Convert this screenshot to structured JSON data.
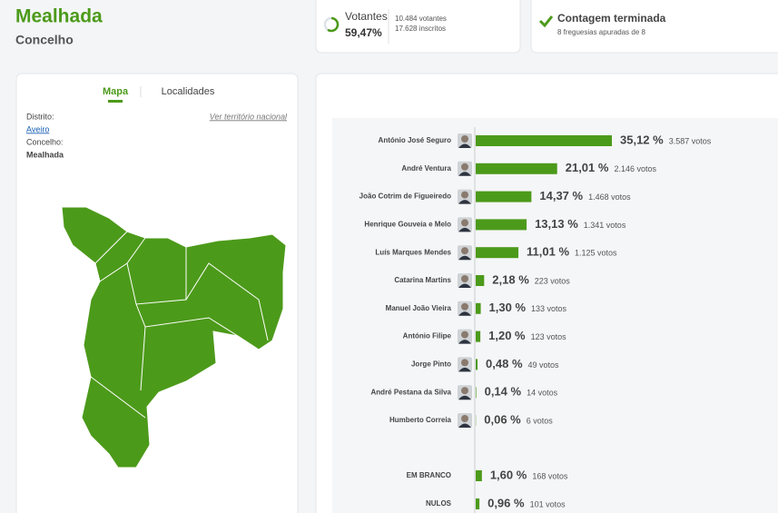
{
  "header": {
    "title": "Mealhada",
    "subtitle": "Concelho"
  },
  "turnout": {
    "label": "Votantes",
    "percent": {
      "value": 59.47,
      "label": "59,47%"
    },
    "voters": "10.484 votantes",
    "registered": "17.628 inscritos"
  },
  "count": {
    "title": "Contagem terminada",
    "detail": "8 freguesias apuradas de 8"
  },
  "map_panel": {
    "tabs": [
      "Mapa",
      "Localidades"
    ],
    "district_label": "Distrito:",
    "district": "Aveiro",
    "municipality_label": "Concelho:",
    "municipality": "Mealhada",
    "national_link": "Ver território nacional"
  },
  "results": [
    {
      "name": "António José Seguro",
      "percent": {
        "value": 35.12,
        "label": "35,12 %"
      },
      "votes": "3.587 votos"
    },
    {
      "name": "André Ventura",
      "percent": {
        "value": 21.01,
        "label": "21,01 %"
      },
      "votes": "2.146 votos"
    },
    {
      "name": "João Cotrim de Figueiredo",
      "percent": {
        "value": 14.37,
        "label": "14,37 %"
      },
      "votes": "1.468 votos"
    },
    {
      "name": "Henrique Gouveia e Melo",
      "percent": {
        "value": 13.13,
        "label": "13,13 %"
      },
      "votes": "1.341 votos"
    },
    {
      "name": "Luís Marques Mendes",
      "percent": {
        "value": 11.01,
        "label": "11,01 %"
      },
      "votes": "1.125 votos"
    },
    {
      "name": "Catarina Martins",
      "percent": {
        "value": 2.18,
        "label": "2,18 %"
      },
      "votes": "223 votos"
    },
    {
      "name": "Manuel João Vieira",
      "percent": {
        "value": 1.3,
        "label": "1,30 %"
      },
      "votes": "133 votos"
    },
    {
      "name": "António Filipe",
      "percent": {
        "value": 1.2,
        "label": "1,20 %"
      },
      "votes": "123 votos"
    },
    {
      "name": "Jorge Pinto",
      "percent": {
        "value": 0.48,
        "label": "0,48 %"
      },
      "votes": "49 votos"
    },
    {
      "name": "André Pestana da Silva",
      "percent": {
        "value": 0.14,
        "label": "0,14 %"
      },
      "votes": "14 votos"
    },
    {
      "name": "Humberto Correia",
      "percent": {
        "value": 0.06,
        "label": "0,06 %"
      },
      "votes": "6 votos"
    }
  ],
  "other_results": [
    {
      "name": "EM BRANCO",
      "percent": {
        "value": 1.6,
        "label": "1,60 %"
      },
      "votes": "168 votos"
    },
    {
      "name": "NULOS",
      "percent": {
        "value": 0.96,
        "label": "0,96 %"
      },
      "votes": "101 votos"
    }
  ]
}
